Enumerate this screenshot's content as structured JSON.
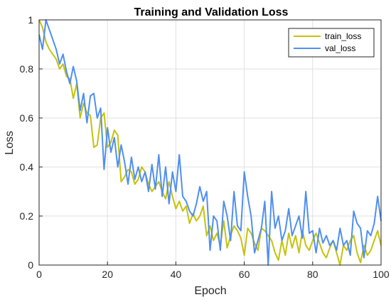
{
  "chart_data": {
    "type": "line",
    "title": "Training and Validation Loss",
    "xlabel": "Epoch",
    "ylabel": "Loss",
    "xlim": [
      0,
      100
    ],
    "ylim": [
      0,
      1
    ],
    "x_ticks": [
      "0",
      "20",
      "40",
      "60",
      "80",
      "100"
    ],
    "y_ticks": [
      "0",
      "0.2",
      "0.4",
      "0.6",
      "0.8",
      "1"
    ],
    "grid": true,
    "legend_position": "top-right",
    "series": [
      {
        "name": "train_loss",
        "color": "#c5c20c",
        "x": [
          0,
          1,
          2,
          3,
          4,
          5,
          6,
          7,
          8,
          9,
          10,
          11,
          12,
          13,
          14,
          15,
          16,
          17,
          18,
          19,
          20,
          21,
          22,
          23,
          24,
          25,
          26,
          27,
          28,
          29,
          30,
          31,
          32,
          33,
          34,
          35,
          36,
          37,
          38,
          39,
          40,
          41,
          42,
          43,
          44,
          45,
          46,
          47,
          48,
          49,
          50,
          51,
          52,
          53,
          54,
          55,
          56,
          57,
          58,
          59,
          60,
          61,
          62,
          63,
          64,
          65,
          66,
          67,
          68,
          69,
          70,
          71,
          72,
          73,
          74,
          75,
          76,
          77,
          78,
          79,
          80,
          81,
          82,
          83,
          84,
          85,
          86,
          87,
          88,
          89,
          90,
          91,
          92,
          93,
          94,
          95,
          96,
          97,
          98,
          99,
          100
        ],
        "values": [
          1.0,
          0.97,
          0.91,
          0.88,
          0.86,
          0.84,
          0.8,
          0.82,
          0.77,
          0.76,
          0.68,
          0.74,
          0.6,
          0.66,
          0.62,
          0.61,
          0.48,
          0.49,
          0.6,
          0.62,
          0.48,
          0.5,
          0.55,
          0.53,
          0.34,
          0.36,
          0.39,
          0.38,
          0.33,
          0.35,
          0.4,
          0.38,
          0.33,
          0.3,
          0.32,
          0.34,
          0.3,
          0.27,
          0.34,
          0.28,
          0.23,
          0.26,
          0.22,
          0.24,
          0.17,
          0.21,
          0.18,
          0.2,
          0.24,
          0.12,
          0.16,
          0.1,
          0.13,
          0.08,
          0.18,
          0.07,
          0.12,
          0.16,
          0.14,
          0.11,
          0.04,
          0.15,
          0.13,
          0.09,
          0.06,
          0.15,
          0.14,
          0.12,
          0.1,
          0.05,
          0.02,
          0.1,
          0.04,
          0.13,
          0.07,
          0.12,
          0.05,
          0.14,
          0.08,
          0.06,
          0.1,
          0.13,
          0.09,
          0.05,
          0.03,
          0.07,
          0.1,
          0.05,
          0.0,
          0.08,
          0.06,
          0.1,
          0.12,
          0.05,
          0.01,
          0.08,
          0.04,
          0.06,
          0.1,
          0.14,
          0.08
        ]
      },
      {
        "name": "val_loss",
        "color": "#4f8ff0",
        "x": [
          0,
          1,
          2,
          3,
          4,
          5,
          6,
          7,
          8,
          9,
          10,
          11,
          12,
          13,
          14,
          15,
          16,
          17,
          18,
          19,
          20,
          21,
          22,
          23,
          24,
          25,
          26,
          27,
          28,
          29,
          30,
          31,
          32,
          33,
          34,
          35,
          36,
          37,
          38,
          39,
          40,
          41,
          42,
          43,
          44,
          45,
          46,
          47,
          48,
          49,
          50,
          51,
          52,
          53,
          54,
          55,
          56,
          57,
          58,
          59,
          60,
          61,
          62,
          63,
          64,
          65,
          66,
          67,
          68,
          69,
          70,
          71,
          72,
          73,
          74,
          75,
          76,
          77,
          78,
          79,
          80,
          81,
          82,
          83,
          84,
          85,
          86,
          87,
          88,
          89,
          90,
          91,
          92,
          93,
          94,
          95,
          96,
          97,
          98,
          99,
          100
        ],
        "values": [
          0.94,
          0.88,
          1.0,
          0.96,
          0.92,
          0.88,
          0.82,
          0.86,
          0.79,
          0.74,
          0.81,
          0.75,
          0.63,
          0.7,
          0.58,
          0.69,
          0.7,
          0.6,
          0.64,
          0.39,
          0.56,
          0.46,
          0.52,
          0.4,
          0.49,
          0.42,
          0.33,
          0.44,
          0.35,
          0.4,
          0.34,
          0.38,
          0.3,
          0.41,
          0.31,
          0.45,
          0.28,
          0.4,
          0.25,
          0.38,
          0.3,
          0.45,
          0.28,
          0.26,
          0.22,
          0.2,
          0.25,
          0.32,
          0.26,
          0.3,
          0.06,
          0.2,
          0.18,
          0.06,
          0.26,
          0.2,
          0.1,
          0.3,
          0.16,
          0.14,
          0.38,
          0.28,
          0.2,
          0.05,
          0.1,
          0.15,
          0.26,
          0.0,
          0.3,
          0.15,
          0.2,
          0.1,
          0.14,
          0.23,
          0.12,
          0.16,
          0.2,
          0.11,
          0.3,
          0.13,
          0.14,
          0.05,
          0.15,
          0.09,
          0.12,
          0.08,
          0.1,
          0.06,
          0.15,
          0.08,
          0.1,
          0.04,
          0.22,
          0.17,
          0.15,
          0.03,
          0.14,
          0.12,
          0.17,
          0.28,
          0.18
        ]
      }
    ]
  }
}
